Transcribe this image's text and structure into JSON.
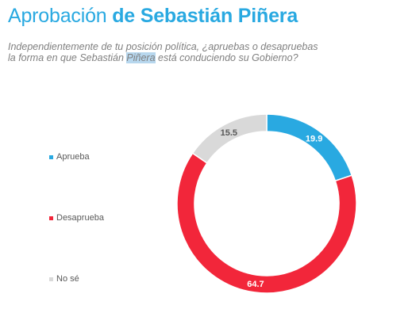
{
  "header": {
    "title_plain": "Aprobación ",
    "title_bold": "de Sebastián Piñera"
  },
  "question": {
    "before": "Independientemente de tu posición política, ¿apruebas o desapruebas la forma en que Sebastián ",
    "highlight": "Piñera",
    "after": " está conduciendo su Gobierno?"
  },
  "chart_data": {
    "type": "pie",
    "variant": "donut",
    "categories": [
      "Aprueba",
      "Desaprueba",
      "No sé"
    ],
    "values": [
      19.9,
      64.7,
      15.5
    ],
    "colors": [
      "#29a9e1",
      "#f2263a",
      "#d9d9d9"
    ],
    "label_colors": [
      "#ffffff",
      "#ffffff",
      "#595959"
    ],
    "legend_position": "left"
  }
}
